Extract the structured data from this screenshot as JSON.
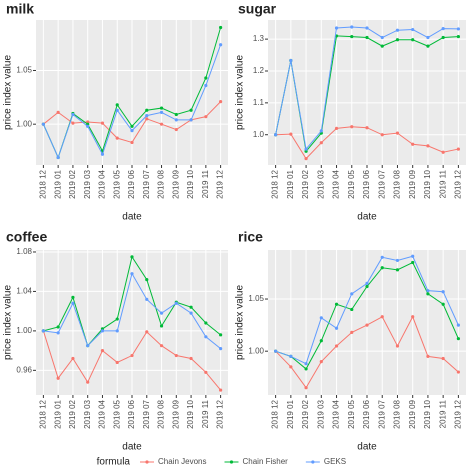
{
  "legend": {
    "title": "formula"
  },
  "chart_data": [
    {
      "type": "line",
      "title": "milk",
      "x_label": "date",
      "y_label": "price index value",
      "categories": [
        "2018 12",
        "2019 01",
        "2019 02",
        "2019 03",
        "2019 04",
        "2019 05",
        "2019 06",
        "2019 07",
        "2019 08",
        "2019 09",
        "2019 10",
        "2019 11",
        "2019 12"
      ],
      "series": [
        {
          "name": "Chain Jevons",
          "color": "#F8766D",
          "values": [
            1.0,
            1.011,
            1.001,
            1.002,
            1.001,
            0.987,
            0.983,
            1.005,
            1.0,
            0.995,
            1.004,
            1.007,
            1.021
          ]
        },
        {
          "name": "Chain Fisher",
          "color": "#00BA38",
          "values": [
            1.0,
            0.969,
            1.01,
            1.0,
            0.975,
            1.018,
            0.998,
            1.013,
            1.015,
            1.009,
            1.013,
            1.043,
            1.09
          ]
        },
        {
          "name": "GEKS",
          "color": "#619CFF",
          "values": [
            1.0,
            0.969,
            1.009,
            0.998,
            0.972,
            1.013,
            0.994,
            1.008,
            1.011,
            1.004,
            1.004,
            1.036,
            1.074
          ]
        }
      ],
      "ylim": [
        0.962,
        1.097
      ],
      "yticks": [
        {
          "value": 1,
          "label": "1.00"
        },
        1.05
      ],
      "grid": true
    },
    {
      "type": "line",
      "title": "sugar",
      "x_label": "date",
      "y_label": "price index value",
      "categories": [
        "2018 12",
        "2019 01",
        "2019 02",
        "2019 03",
        "2019 04",
        "2019 05",
        "2019 06",
        "2019 07",
        "2019 08",
        "2019 09",
        "2019 10",
        "2019 11",
        "2019 12"
      ],
      "series": [
        {
          "name": "Chain Jevons",
          "color": "#F8766D",
          "values": [
            1.0,
            1.002,
            0.925,
            0.975,
            1.02,
            1.025,
            1.022,
            1.0,
            1.005,
            0.97,
            0.965,
            0.945,
            0.955
          ]
        },
        {
          "name": "Chain Fisher",
          "color": "#00BA38",
          "values": [
            1.0,
            1.233,
            0.948,
            1.005,
            1.31,
            1.308,
            1.305,
            1.278,
            1.298,
            1.298,
            1.278,
            1.305,
            1.308
          ]
        },
        {
          "name": "GEKS",
          "color": "#619CFF",
          "values": [
            1.0,
            1.233,
            0.955,
            1.012,
            1.335,
            1.338,
            1.335,
            1.305,
            1.328,
            1.33,
            1.305,
            1.333,
            1.332
          ]
        }
      ],
      "ylim": [
        0.905,
        1.36
      ],
      "yticks": [
        {
          "value": 1,
          "label": "1.0"
        },
        1.1,
        1.2,
        1.3
      ],
      "grid": true
    },
    {
      "type": "line",
      "title": "coffee",
      "x_label": "date",
      "y_label": "price index value",
      "categories": [
        "2018 12",
        "2019 01",
        "2019 02",
        "2019 03",
        "2019 04",
        "2019 05",
        "2019 06",
        "2019 07",
        "2019 08",
        "2019 09",
        "2019 10",
        "2019 11",
        "2019 12"
      ],
      "series": [
        {
          "name": "Chain Jevons",
          "color": "#F8766D",
          "values": [
            1.0,
            0.952,
            0.972,
            0.948,
            0.98,
            0.968,
            0.975,
            0.999,
            0.985,
            0.975,
            0.972,
            0.958,
            0.94
          ]
        },
        {
          "name": "Chain Fisher",
          "color": "#00BA38",
          "values": [
            1.0,
            1.004,
            1.034,
            0.985,
            1.002,
            1.012,
            1.075,
            1.052,
            1.005,
            1.029,
            1.024,
            1.008,
            0.996
          ]
        },
        {
          "name": "GEKS",
          "color": "#619CFF",
          "values": [
            1.0,
            0.998,
            1.028,
            0.985,
            1.0,
            1.0,
            1.058,
            1.032,
            1.018,
            1.028,
            1.018,
            0.994,
            0.982
          ]
        }
      ],
      "ylim": [
        0.935,
        1.082
      ],
      "yticks": [
        0.96,
        {
          "value": 1,
          "label": "1.00"
        },
        1.04,
        1.08
      ],
      "grid": true
    },
    {
      "type": "line",
      "title": "rice",
      "x_label": "date",
      "y_label": "price index value",
      "categories": [
        "2018 12",
        "2019 01",
        "2019 02",
        "2019 03",
        "2019 04",
        "2019 05",
        "2019 06",
        "2019 07",
        "2019 08",
        "2019 09",
        "2019 10",
        "2019 11",
        "2019 12"
      ],
      "series": [
        {
          "name": "Chain Jevons",
          "color": "#F8766D",
          "values": [
            1.0,
            0.985,
            0.965,
            0.99,
            1.005,
            1.018,
            1.025,
            1.033,
            1.005,
            1.033,
            0.995,
            0.993,
            0.98
          ]
        },
        {
          "name": "Chain Fisher",
          "color": "#00BA38",
          "values": [
            1.0,
            0.995,
            0.983,
            1.01,
            1.045,
            1.04,
            1.062,
            1.08,
            1.078,
            1.085,
            1.055,
            1.045,
            1.012
          ]
        },
        {
          "name": "GEKS",
          "color": "#619CFF",
          "values": [
            1.0,
            0.995,
            0.988,
            1.032,
            1.022,
            1.055,
            1.065,
            1.09,
            1.087,
            1.091,
            1.058,
            1.057,
            1.025
          ]
        }
      ],
      "ylim": [
        0.958,
        1.097
      ],
      "yticks": [
        {
          "value": 1,
          "label": "1.00"
        },
        1.05
      ],
      "grid": true
    }
  ]
}
